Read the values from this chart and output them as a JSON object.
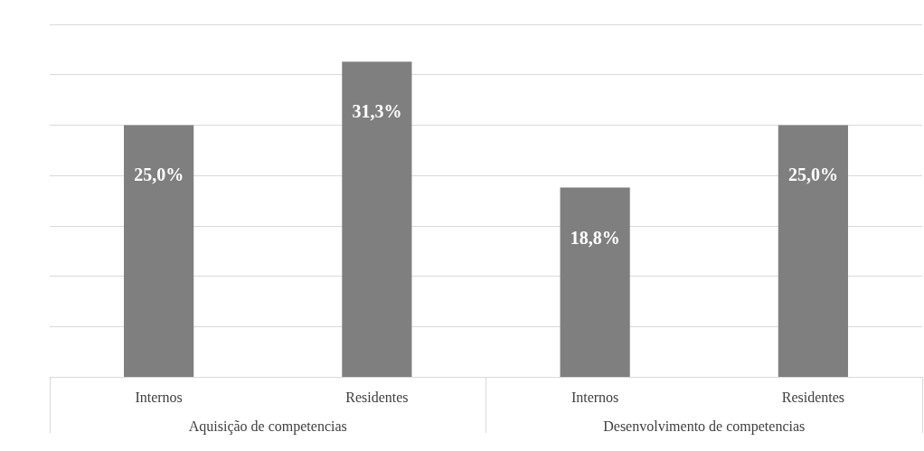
{
  "chart_data": {
    "type": "bar",
    "categories": [
      "Internos",
      "Residentes",
      "Internos",
      "Residentes"
    ],
    "values": [
      25.0,
      31.3,
      18.8,
      25.0
    ],
    "value_labels": [
      "25,0%",
      "31,3%",
      "18,8%",
      "25,0%"
    ],
    "color": "#7f7f7f",
    "annotations": [
      "Aquisição de competencias",
      "Desenvolvimento de competencias"
    ],
    "ylim": [
      0,
      35
    ],
    "yticks": [
      {
        "value": 0,
        "label": null
      },
      {
        "value": 5,
        "label": null
      },
      {
        "value": 10,
        "label": null
      },
      {
        "value": 15,
        "label": null
      },
      {
        "value": 20,
        "label": null
      },
      {
        "value": 25,
        "label": null
      },
      {
        "value": 30,
        "label": null
      },
      {
        "value": 35,
        "label": null
      }
    ],
    "grid": "y",
    "tick_labels": "x"
  }
}
